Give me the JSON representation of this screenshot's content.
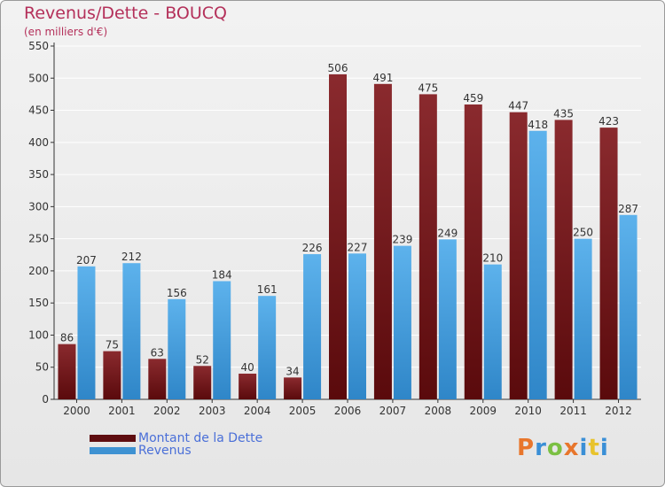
{
  "title": "Revenus/Dette - BOUCQ",
  "subtitle": "(en milliers d'€)",
  "colors": {
    "dette": "#7b1318",
    "revenus": "#4aa3e0",
    "axis": "#333333",
    "grid": "#ffffff",
    "title": "#b4305a",
    "legend_text": "#4a6fd8"
  },
  "legend": {
    "dette_label": "Montant de la Dette",
    "revenus_label": "Revenus"
  },
  "logo": {
    "letters": [
      "P",
      "r",
      "o",
      "x",
      "i",
      "t",
      "i"
    ],
    "colors": [
      "#e8762c",
      "#3a8fd6",
      "#7bc043",
      "#e8762c",
      "#3a8fd6",
      "#e8c32c",
      "#3a8fd6"
    ]
  },
  "chart_data": {
    "type": "bar",
    "title": "Revenus/Dette - BOUCQ",
    "ylabel": "(en milliers d'€)",
    "xlabel": "",
    "ylim": [
      0,
      550
    ],
    "yticks": [
      0,
      50,
      100,
      150,
      200,
      250,
      300,
      350,
      400,
      450,
      500,
      550
    ],
    "categories": [
      "2000",
      "2001",
      "2002",
      "2003",
      "2004",
      "2005",
      "2006",
      "2007",
      "2008",
      "2009",
      "2010",
      "2011",
      "2012"
    ],
    "series": [
      {
        "name": "Montant de la Dette",
        "values": [
          86,
          75,
          63,
          52,
          40,
          34,
          506,
          491,
          475,
          459,
          447,
          435,
          423
        ]
      },
      {
        "name": "Revenus",
        "values": [
          207,
          212,
          156,
          184,
          161,
          226,
          227,
          239,
          249,
          210,
          418,
          250,
          287
        ]
      }
    ]
  }
}
